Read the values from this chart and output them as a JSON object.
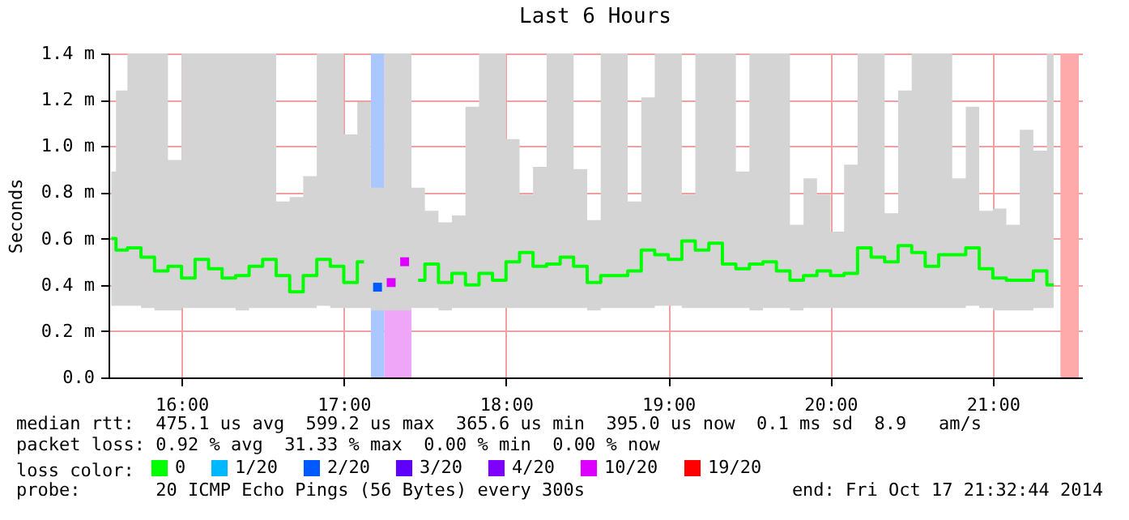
{
  "chart_data": {
    "type": "step",
    "title": "Last 6 Hours",
    "ylabel": "Seconds",
    "legend_title": "loss color:",
    "legend": "bottom",
    "grid": true,
    "xlim": [
      15.55,
      21.55
    ],
    "ylim": [
      0,
      1.4
    ],
    "xticks": [
      {
        "value": 16,
        "label": "16:00"
      },
      {
        "value": 17,
        "label": "17:00"
      },
      {
        "value": 18,
        "label": "18:00"
      },
      {
        "value": 19,
        "label": "19:00"
      },
      {
        "value": 20,
        "label": "20:00"
      },
      {
        "value": 21,
        "label": "21:00"
      }
    ],
    "yticks": [
      {
        "value": 0,
        "label": "0.0"
      },
      {
        "value": 0.2,
        "label": "0.2 m"
      },
      {
        "value": 0.4,
        "label": "0.4 m"
      },
      {
        "value": 0.6,
        "label": "0.6 m"
      },
      {
        "value": 0.8,
        "label": "0.8 m"
      },
      {
        "value": 1.0,
        "label": "1.0 m"
      },
      {
        "value": 1.2,
        "label": "1.2 m"
      },
      {
        "value": 1.4,
        "label": "1.4 m"
      }
    ],
    "x": [
      15.567,
      15.625,
      15.708,
      15.792,
      15.875,
      15.958,
      16.042,
      16.125,
      16.208,
      16.292,
      16.375,
      16.458,
      16.542,
      16.625,
      16.708,
      16.792,
      16.875,
      16.958,
      17.042,
      17.125,
      17.208,
      17.292,
      17.375,
      17.458,
      17.542,
      17.625,
      17.708,
      17.792,
      17.875,
      17.958,
      18.042,
      18.125,
      18.208,
      18.292,
      18.375,
      18.458,
      18.542,
      18.625,
      18.708,
      18.792,
      18.875,
      18.958,
      19.042,
      19.125,
      19.208,
      19.292,
      19.375,
      19.458,
      19.542,
      19.625,
      19.708,
      19.792,
      19.875,
      19.958,
      20.042,
      20.125,
      20.208,
      20.292,
      20.375,
      20.458,
      20.542,
      20.625,
      20.708,
      20.792,
      20.875,
      20.958,
      21.042,
      21.125,
      21.208,
      21.292,
      21.375
    ],
    "series": [
      {
        "name": "0",
        "color": "#00ff00",
        "values": [
          0.6,
          0.55,
          0.56,
          0.52,
          0.46,
          0.48,
          0.43,
          0.51,
          0.47,
          0.43,
          0.44,
          0.48,
          0.51,
          0.44,
          0.37,
          0.44,
          0.51,
          0.48,
          0.41,
          0.5,
          null,
          null,
          null,
          0.42,
          0.49,
          0.41,
          0.45,
          0.4,
          0.45,
          0.42,
          0.5,
          0.54,
          0.48,
          0.49,
          0.52,
          0.48,
          0.41,
          0.44,
          0.44,
          0.46,
          0.55,
          0.53,
          0.51,
          0.59,
          0.55,
          0.58,
          0.49,
          0.47,
          0.49,
          0.5,
          0.46,
          0.42,
          0.44,
          0.46,
          0.44,
          0.45,
          0.56,
          0.52,
          0.5,
          0.57,
          0.54,
          0.48,
          0.53,
          0.53,
          0.56,
          0.47,
          0.43,
          0.42,
          0.42,
          0.46,
          0.4
        ],
        "lower": [
          0.31,
          0.31,
          0.31,
          0.3,
          0.29,
          0.29,
          0.3,
          0.3,
          0.3,
          0.3,
          0.29,
          0.3,
          0.3,
          0.3,
          0.3,
          0.3,
          0.31,
          0.3,
          0.3,
          0.3,
          0.29,
          0.29,
          0.29,
          0.3,
          0.3,
          0.29,
          0.3,
          0.3,
          0.3,
          0.3,
          0.3,
          0.3,
          0.3,
          0.3,
          0.3,
          0.3,
          0.29,
          0.3,
          0.3,
          0.3,
          0.3,
          0.31,
          0.31,
          0.3,
          0.3,
          0.3,
          0.3,
          0.3,
          0.29,
          0.3,
          0.3,
          0.29,
          0.3,
          0.3,
          0.3,
          0.3,
          0.3,
          0.3,
          0.3,
          0.3,
          0.3,
          0.3,
          0.3,
          0.3,
          0.31,
          0.3,
          0.29,
          0.29,
          0.29,
          0.3,
          0.3
        ],
        "upper": [
          0.89,
          1.24,
          1.4,
          1.4,
          1.4,
          0.94,
          1.4,
          1.4,
          1.4,
          1.4,
          1.4,
          1.4,
          1.4,
          0.76,
          0.78,
          0.87,
          1.4,
          1.4,
          1.05,
          1.19,
          0.82,
          1.4,
          1.4,
          0.82,
          0.72,
          0.67,
          0.7,
          1.17,
          1.4,
          1.4,
          1.03,
          0.79,
          0.91,
          1.4,
          1.4,
          0.9,
          0.68,
          1.4,
          1.4,
          0.76,
          1.21,
          1.4,
          1.4,
          0.79,
          1.4,
          1.4,
          1.4,
          0.89,
          1.4,
          1.4,
          1.4,
          0.66,
          0.86,
          0.79,
          0.63,
          0.92,
          1.4,
          1.4,
          0.71,
          1.24,
          1.4,
          1.4,
          1.4,
          0.86,
          1.17,
          0.72,
          0.73,
          0.66,
          1.07,
          0.98,
          1.4
        ]
      },
      {
        "name": "1/20",
        "color": "#00b8ff",
        "values": [
          null,
          null,
          null,
          null,
          null,
          null,
          null,
          null,
          null,
          null,
          null,
          null,
          null,
          null,
          null,
          null,
          null,
          null,
          null,
          null,
          null,
          null,
          null,
          null,
          null,
          null,
          null,
          null,
          null,
          null,
          null,
          null,
          null,
          null,
          null,
          null,
          null,
          null,
          null,
          null,
          null,
          null,
          null,
          null,
          null,
          null,
          null,
          null,
          null,
          null,
          null,
          null,
          null,
          null,
          null,
          null,
          null,
          null,
          null,
          null,
          null,
          null,
          null,
          null,
          null,
          null,
          null,
          null,
          null,
          null,
          null
        ]
      },
      {
        "name": "2/20",
        "type": "scatter",
        "marker": "square",
        "color": "#0059ff",
        "x": [
          17.208
        ],
        "values": [
          0.39
        ]
      },
      {
        "name": "3/20",
        "color": "#5e00ff",
        "values": [
          null,
          null,
          null,
          null,
          null,
          null,
          null,
          null,
          null,
          null,
          null,
          null,
          null,
          null,
          null,
          null,
          null,
          null,
          null,
          null,
          null,
          null,
          null,
          null,
          null,
          null,
          null,
          null,
          null,
          null,
          null,
          null,
          null,
          null,
          null,
          null,
          null,
          null,
          null,
          null,
          null,
          null,
          null,
          null,
          null,
          null,
          null,
          null,
          null,
          null,
          null,
          null,
          null,
          null,
          null,
          null,
          null,
          null,
          null,
          null,
          null,
          null,
          null,
          null,
          null,
          null,
          null,
          null,
          null,
          null,
          null
        ]
      },
      {
        "name": "4/20",
        "color": "#7e00ff",
        "values": [
          null,
          null,
          null,
          null,
          null,
          null,
          null,
          null,
          null,
          null,
          null,
          null,
          null,
          null,
          null,
          null,
          null,
          null,
          null,
          null,
          null,
          null,
          null,
          null,
          null,
          null,
          null,
          null,
          null,
          null,
          null,
          null,
          null,
          null,
          null,
          null,
          null,
          null,
          null,
          null,
          null,
          null,
          null,
          null,
          null,
          null,
          null,
          null,
          null,
          null,
          null,
          null,
          null,
          null,
          null,
          null,
          null,
          null,
          null,
          null,
          null,
          null,
          null,
          null,
          null,
          null,
          null,
          null,
          null,
          null,
          null
        ]
      },
      {
        "name": "10/20",
        "type": "scatter",
        "marker": "square",
        "color": "#dd00ff",
        "x": [
          17.292,
          17.375
        ],
        "values": [
          0.41,
          0.5
        ]
      },
      {
        "name": "19/20",
        "color": "#ff0000",
        "values": [
          null,
          null,
          null,
          null,
          null,
          null,
          null,
          null,
          null,
          null,
          null,
          null,
          null,
          null,
          null,
          null,
          null,
          null,
          null,
          null,
          null,
          null,
          null,
          null,
          null,
          null,
          null,
          null,
          null,
          null,
          null,
          null,
          null,
          null,
          null,
          null,
          null,
          null,
          null,
          null,
          null,
          null,
          null,
          null,
          null,
          null,
          null,
          null,
          null,
          null,
          null,
          null,
          null,
          null,
          null,
          null,
          null,
          null,
          null,
          null,
          null,
          null,
          null,
          null,
          null,
          null,
          null,
          null,
          null,
          null,
          null
        ]
      }
    ],
    "bands": [
      {
        "axis": "x",
        "from": 17.167,
        "to": 17.25,
        "color": "#aac8ff"
      },
      {
        "axis": "x",
        "from": 17.25,
        "to": 17.417,
        "color": "#f0a6f8"
      },
      {
        "axis": "x",
        "from": 21.417,
        "to": 21.53,
        "color": "#ffaaaa"
      }
    ],
    "annotations": [
      "median rtt:  475.1 us avg  599.2 us max  365.6 us min  395.0 us now  0.1 ms sd  8.9   am/s",
      "packet loss: 0.92 % avg  31.33 % max  0.00 % min  0.00 % now",
      "probe:       20 ICMP Echo Pings (56 Bytes) every 300s",
      "end: Fri Oct 17 21:32:44 2014"
    ]
  }
}
